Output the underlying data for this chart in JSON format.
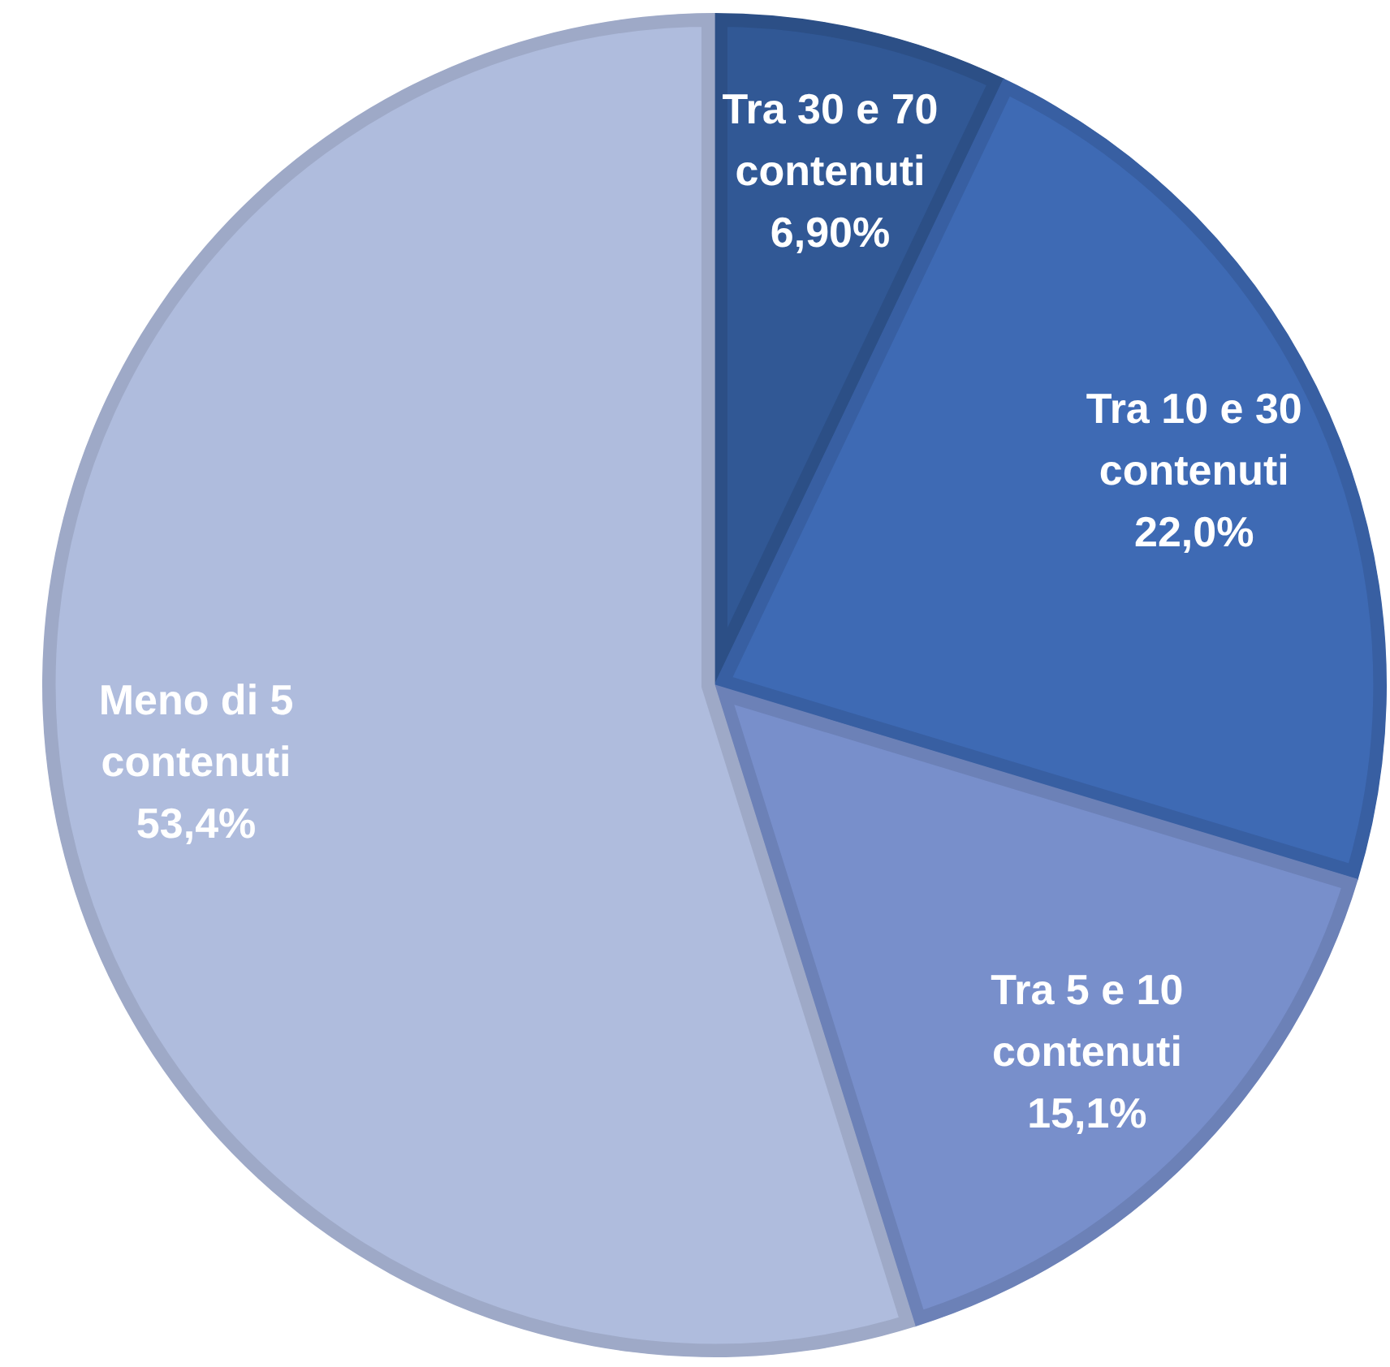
{
  "chart_data": {
    "type": "pie",
    "categories": [
      "Tra 30 e 70 contenuti",
      "Tra 10 e 30 contenuti",
      "Tra 5 e 10 contenuti",
      "Meno di 5 contenuti"
    ],
    "values": [
      6.9,
      22.0,
      15.1,
      53.4
    ],
    "colors": [
      "#315895",
      "#3e6ab4",
      "#788fcb",
      "#afbcdd"
    ],
    "value_labels": [
      "6,90%",
      "22,0%",
      "15,1%",
      "53,4%"
    ]
  }
}
